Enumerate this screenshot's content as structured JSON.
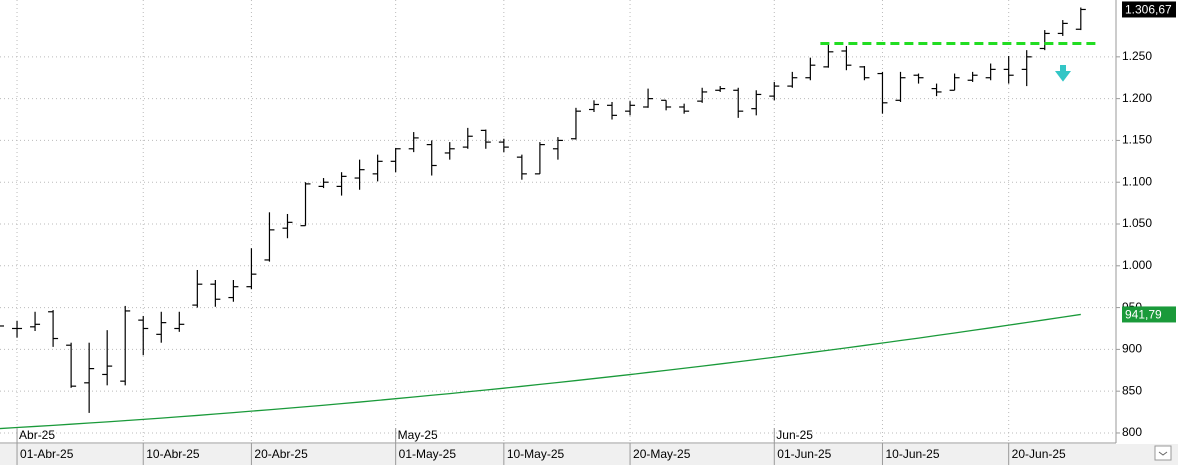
{
  "chart_data": {
    "type": "ohlc",
    "categories": [
      null,
      "01-Abr-25",
      null,
      null,
      null,
      null,
      null,
      null,
      "10-Abr-25",
      null,
      null,
      null,
      null,
      null,
      "20-Abr-25",
      null,
      null,
      null,
      null,
      null,
      null,
      null,
      "01-May-25",
      null,
      null,
      null,
      null,
      null,
      "10-May-25",
      null,
      null,
      null,
      null,
      null,
      null,
      "20-May-25",
      null,
      null,
      null,
      null,
      null,
      null,
      null,
      "01-Jun-25",
      null,
      null,
      null,
      null,
      null,
      "10-Jun-25",
      null,
      null,
      null,
      null,
      null,
      null,
      "20-Jun-25",
      null,
      null,
      null,
      null
    ],
    "month_categories": [
      null,
      "Abr-25",
      null,
      null,
      null,
      null,
      null,
      null,
      null,
      null,
      null,
      null,
      null,
      null,
      null,
      null,
      null,
      null,
      null,
      null,
      null,
      null,
      "May-25",
      null,
      null,
      null,
      null,
      null,
      null,
      null,
      null,
      null,
      null,
      null,
      null,
      null,
      null,
      null,
      null,
      null,
      null,
      null,
      null,
      "Jun-25",
      null,
      null,
      null,
      null,
      null,
      null,
      null,
      null,
      null,
      null,
      null,
      null,
      null,
      null,
      null,
      null,
      null
    ],
    "series": [
      {
        "color": "#000000",
        "open": [
          930,
          925,
          927,
          945,
          905,
          860,
          870,
          862,
          935,
          918,
          925,
          953,
          978,
          962,
          975,
          1007,
          1045,
          1048,
          1095,
          1095,
          1105,
          1110,
          1125,
          1140,
          1145,
          1135,
          1142,
          1162,
          1148,
          1130,
          1110,
          1140,
          1152,
          1187,
          1192,
          1185,
          1190,
          1198,
          1190,
          1197,
          1210,
          1210,
          1188,
          1203,
          1215,
          1225,
          1238,
          1257,
          1238,
          1230,
          1198,
          1228,
          1212,
          1210,
          1222,
          1225,
          1235,
          1235,
          1260,
          1278,
          1283
        ],
        "high": [
          934,
          934,
          945,
          947,
          908,
          908,
          923,
          952,
          940,
          945,
          945,
          995,
          983,
          983,
          1021,
          1064,
          1062,
          1100,
          1105,
          1112,
          1127,
          1133,
          1141,
          1160,
          1150,
          1148,
          1165,
          1163,
          1152,
          1133,
          1148,
          1154,
          1189,
          1198,
          1196,
          1197,
          1212,
          1198,
          1194,
          1213,
          1215,
          1213,
          1210,
          1220,
          1232,
          1249,
          1266,
          1263,
          1239,
          1232,
          1232,
          1230,
          1218,
          1230,
          1232,
          1242,
          1251,
          1258,
          1282,
          1294,
          1309
        ],
        "low": [
          925,
          914,
          922,
          903,
          854,
          824,
          857,
          857,
          893,
          908,
          921,
          950,
          951,
          957,
          972,
          1005,
          1033,
          1048,
          1093,
          1084,
          1091,
          1101,
          1112,
          1136,
          1108,
          1127,
          1140,
          1140,
          1136,
          1103,
          1110,
          1127,
          1151,
          1184,
          1175,
          1180,
          1189,
          1186,
          1182,
          1195,
          1208,
          1177,
          1180,
          1198,
          1213,
          1222,
          1237,
          1234,
          1222,
          1182,
          1196,
          1218,
          1203,
          1210,
          1220,
          1222,
          1218,
          1215,
          1258,
          1275,
          1282
        ],
        "close": [
          928,
          925,
          930,
          913,
          856,
          877,
          880,
          946,
          925,
          932,
          930,
          978,
          960,
          975,
          990,
          1043,
          1052,
          1098,
          1100,
          1107,
          1115,
          1125,
          1140,
          1153,
          1120,
          1140,
          1155,
          1148,
          1142,
          1110,
          1145,
          1150,
          1185,
          1193,
          1180,
          1192,
          1200,
          1190,
          1185,
          1208,
          1212,
          1185,
          1205,
          1215,
          1225,
          1240,
          1256,
          1240,
          1225,
          1195,
          1225,
          1225,
          1208,
          1225,
          1228,
          1235,
          1228,
          1250,
          1278,
          1290,
          1306.67
        ]
      },
      {
        "type": "line",
        "color": "#1a9a3a",
        "values": [
          805.2,
          806.5,
          807.8,
          809.1,
          810.5,
          811.9,
          813.3,
          814.8,
          816.3,
          817.8,
          819.4,
          821.0,
          822.7,
          824.3,
          826.1,
          827.8,
          829.6,
          831.4,
          833.2,
          835.1,
          837.0,
          839.0,
          841.0,
          843.0,
          845.1,
          847.1,
          849.3,
          851.4,
          853.6,
          855.8,
          858.1,
          860.4,
          862.7,
          865.1,
          867.5,
          869.9,
          872.4,
          874.9,
          877.4,
          880.0,
          882.6,
          885.2,
          887.9,
          890.6,
          893.4,
          896.2,
          899.0,
          901.8,
          904.7,
          907.6,
          910.6,
          913.5,
          916.6,
          919.6,
          922.7,
          925.8,
          929.0,
          932.2,
          935.4,
          938.6,
          941.79
        ]
      }
    ],
    "ylim": [
      788,
      1318
    ],
    "yticks": [
      800,
      850,
      900,
      950,
      {
        "value": 1000,
        "label": "1.000"
      },
      {
        "value": 1050,
        "label": "1.050"
      },
      {
        "value": 1100,
        "label": "1.100"
      },
      {
        "value": 1150,
        "label": "1.150"
      },
      {
        "value": 1200,
        "label": "1.200"
      },
      {
        "value": 1250,
        "label": "1.250"
      }
    ],
    "grid": true,
    "horizontal_line": {
      "value": 1266,
      "color": "#22dd22"
    },
    "price_markers": [
      {
        "value": 1306.67,
        "label": "1.306,67",
        "color": "#000000"
      },
      {
        "value": 941.79,
        "label": "941,79",
        "color": "#1a9a3a"
      }
    ]
  }
}
